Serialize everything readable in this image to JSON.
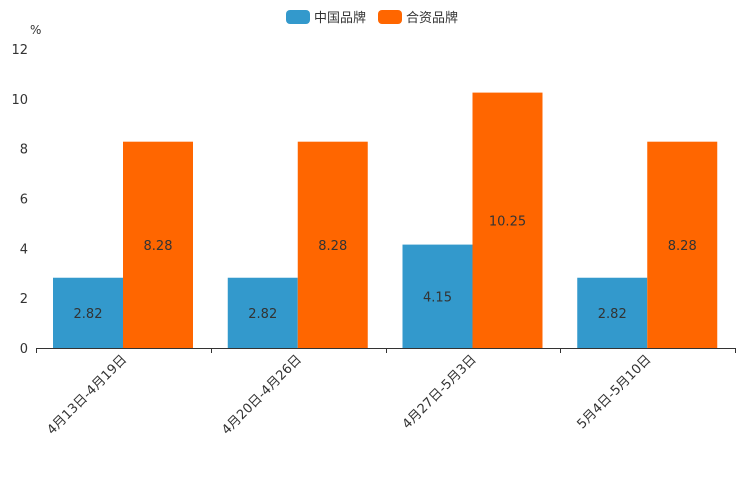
{
  "chart_data": {
    "type": "bar",
    "title": "",
    "ylabel": "%",
    "xlabel": "",
    "ylim": [
      0,
      12
    ],
    "yticks": [
      "0",
      "2",
      "4",
      "6",
      "8",
      "10",
      "12"
    ],
    "categories": [
      "4月13日-4月19日",
      "4月20日-4月26日",
      "4月27日-5月3日",
      "5月4日-5月10日"
    ],
    "series": [
      {
        "name": "中国品牌",
        "color": "#3399cc",
        "values": [
          2.82,
          2.82,
          4.15,
          2.82
        ],
        "labels": [
          "2.82",
          "2.82",
          "4.15",
          "2.82"
        ]
      },
      {
        "name": "合资品牌",
        "color": "#ff6600",
        "values": [
          8.28,
          8.28,
          10.25,
          8.28
        ],
        "labels": [
          "8.28",
          "8.28",
          "10.25",
          "8.28"
        ]
      }
    ],
    "legend_position": "top-center",
    "grid": false
  }
}
